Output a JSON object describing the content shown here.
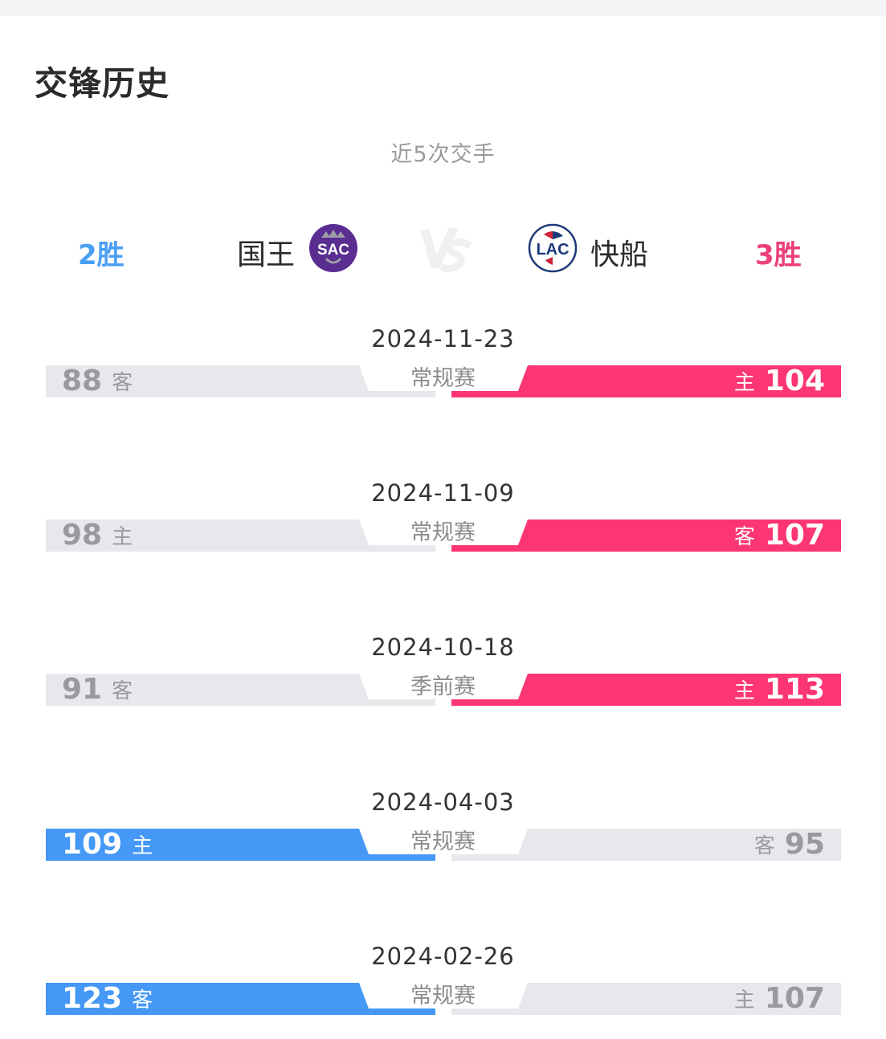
{
  "header": {
    "title": "交锋历史"
  },
  "summary": {
    "subtitle": "近5次交手",
    "left_team": {
      "wins_label": "2胜",
      "name": "国王",
      "logo": "SAC",
      "logo_icon": "kings-logo-icon",
      "color": "#4a9ff5"
    },
    "right_team": {
      "wins_label": "3胜",
      "name": "快船",
      "logo": "LAC",
      "logo_icon": "clippers-logo-icon",
      "color": "#ec3f7c"
    },
    "vs_icon": "vs-icon"
  },
  "colors": {
    "left_win": "#4598f6",
    "right_win": "#fb3672",
    "lose": "#e8e8ec"
  },
  "matches": [
    {
      "date": "2024-11-23",
      "type": "常规赛",
      "left": {
        "score": "88",
        "venue": "客",
        "win": false
      },
      "right": {
        "score": "104",
        "venue": "主",
        "win": true
      }
    },
    {
      "date": "2024-11-09",
      "type": "常规赛",
      "left": {
        "score": "98",
        "venue": "主",
        "win": false
      },
      "right": {
        "score": "107",
        "venue": "客",
        "win": true
      }
    },
    {
      "date": "2024-10-18",
      "type": "季前赛",
      "left": {
        "score": "91",
        "venue": "客",
        "win": false
      },
      "right": {
        "score": "113",
        "venue": "主",
        "win": true
      }
    },
    {
      "date": "2024-04-03",
      "type": "常规赛",
      "left": {
        "score": "109",
        "venue": "主",
        "win": true
      },
      "right": {
        "score": "95",
        "venue": "客",
        "win": false
      }
    },
    {
      "date": "2024-02-26",
      "type": "常规赛",
      "left": {
        "score": "123",
        "venue": "客",
        "win": true
      },
      "right": {
        "score": "107",
        "venue": "主",
        "win": false
      }
    }
  ]
}
